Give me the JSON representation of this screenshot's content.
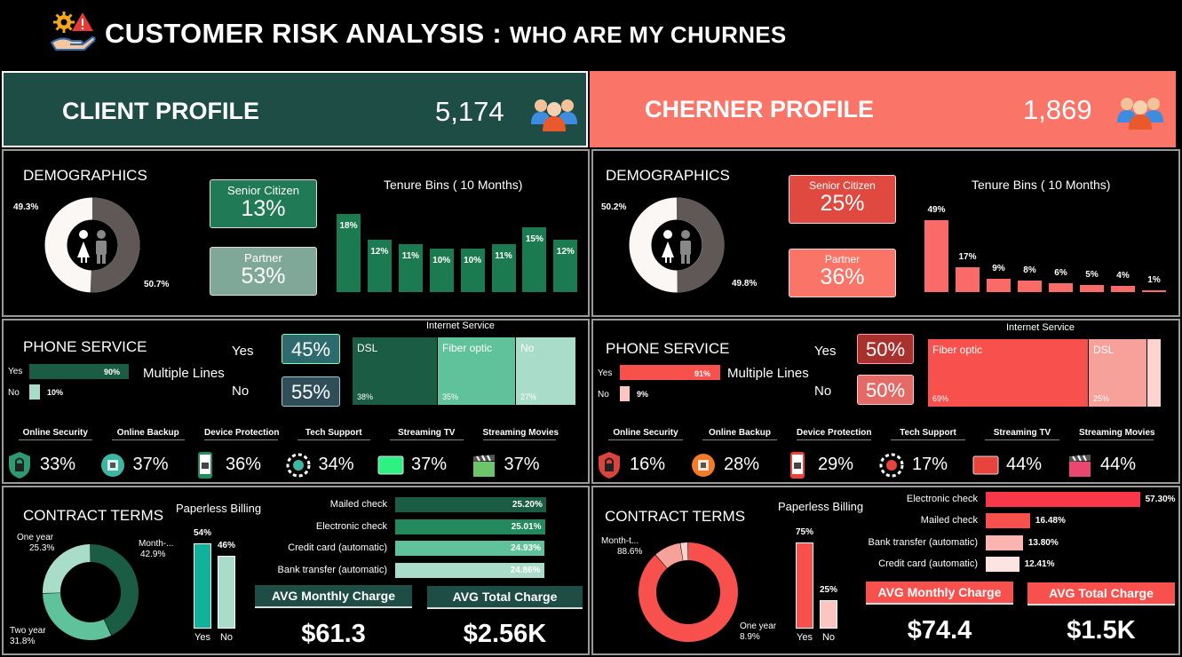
{
  "header": {
    "title": "CUSTOMER RISK ANALYSIS :",
    "subtitle": "WHO ARE MY CHURNES",
    "icon": "hand-gear-alert-icon"
  },
  "client": {
    "label": "CLIENT PROFILE",
    "count": "5,174",
    "colors": {
      "banner": "#1e4d45",
      "accent": "#1c7a50"
    },
    "demographics": {
      "title": "DEMOGRAPHICS",
      "gender_pct": [
        "49.3%",
        "50.7%"
      ],
      "gender_values": [
        49.3,
        50.7
      ],
      "senior": {
        "label": "Senior Citizen",
        "value": "13%"
      },
      "partner": {
        "label": "Partner",
        "value": "53%"
      },
      "tenure_title": "Tenure Bins ( 10 Months)",
      "tenure_labels": [
        "18%",
        "12%",
        "11%",
        "10%",
        "10%",
        "11%",
        "15%",
        "12%"
      ],
      "tenure_values": [
        18,
        12,
        11,
        10,
        10,
        11,
        15,
        12
      ]
    },
    "phone": {
      "title": "PHONE SERVICE",
      "multi_label": "Multiple Lines",
      "rows": [
        {
          "label": "Yes",
          "pct": "90%",
          "value": 90
        },
        {
          "label": "No",
          "pct": "10%",
          "value": 10
        }
      ],
      "yes_label": "Yes",
      "yes_pct": "45%",
      "no_label": "No",
      "no_pct": "55%"
    },
    "internet": {
      "title": "Internet Service",
      "tiles": [
        {
          "label": "DSL",
          "pct": "38%",
          "value": 38,
          "color": "#1b5c45"
        },
        {
          "label": "Fiber optic",
          "pct": "35%",
          "value": 35,
          "color": "#5fc29a"
        },
        {
          "label": "No",
          "pct": "27%",
          "value": 27,
          "color": "#a9dcc9"
        }
      ]
    },
    "services": [
      {
        "label": "Online Security",
        "pct": "33%",
        "icon": "shield-lock-icon"
      },
      {
        "label": "Online Backup",
        "pct": "37%",
        "icon": "backup-icon"
      },
      {
        "label": "Device Protection",
        "pct": "36%",
        "icon": "phone-lock-icon"
      },
      {
        "label": "Tech Support",
        "pct": "34%",
        "icon": "support-gear-icon"
      },
      {
        "label": "Streaming TV",
        "pct": "37%",
        "icon": "tv-icon"
      },
      {
        "label": "Streaming Movies",
        "pct": "37%",
        "icon": "clapper-icon"
      }
    ],
    "contract": {
      "title": "CONTRACT TERMS",
      "slices": [
        {
          "label": "Month-...",
          "pct": "42.9%",
          "value": 42.9,
          "color": "#1b5c45"
        },
        {
          "label": "Two year",
          "pct": "31.8%",
          "value": 31.8,
          "color": "#5fc29a"
        },
        {
          "label": "One year",
          "pct": "25.3%",
          "value": 25.3,
          "color": "#a9dcc9"
        }
      ]
    },
    "paperless": {
      "title": "Paperless Billing",
      "bars": [
        {
          "label": "Yes",
          "pct": "54%",
          "value": 54,
          "color": "#10b39a"
        },
        {
          "label": "No",
          "pct": "46%",
          "value": 46,
          "color": "#a9dcc9"
        }
      ]
    },
    "payment": [
      {
        "label": "Mailed check",
        "pct": "25.20%",
        "value": 25.2,
        "color": "#1b5c45"
      },
      {
        "label": "Electronic check",
        "pct": "25.01%",
        "value": 25.01,
        "color": "#228a5c"
      },
      {
        "label": "Credit card (automatic)",
        "pct": "24.93%",
        "value": 24.93,
        "color": "#5fc29a"
      },
      {
        "label": "Bank transfer (automatic)",
        "pct": "24.86%",
        "value": 24.86,
        "color": "#a9dcc9"
      }
    ],
    "avg_monthly": {
      "label": "AVG Monthly Charge",
      "value": "$61.3"
    },
    "avg_total": {
      "label": "AVG Total Charge",
      "value": "$2.56K"
    }
  },
  "churner": {
    "label": "CHERNER PROFILE",
    "count": "1,869",
    "colors": {
      "banner": "#fa7468",
      "accent": "#f86b66"
    },
    "demographics": {
      "title": "DEMOGRAPHICS",
      "gender_pct": [
        "50.2%",
        "49.8%"
      ],
      "gender_values": [
        50.2,
        49.8
      ],
      "senior": {
        "label": "Senior Citizen",
        "value": "25%"
      },
      "partner": {
        "label": "Partner",
        "value": "36%"
      },
      "tenure_title": "Tenure Bins ( 10 Months)",
      "tenure_labels": [
        "49%",
        "17%",
        "9%",
        "8%",
        "6%",
        "5%",
        "4%",
        "1%"
      ],
      "tenure_values": [
        49,
        17,
        9,
        8,
        6,
        5,
        4,
        1
      ]
    },
    "phone": {
      "title": "PHONE SERVICE",
      "multi_label": "Multiple Lines",
      "rows": [
        {
          "label": "Yes",
          "pct": "91%",
          "value": 91
        },
        {
          "label": "No",
          "pct": "9%",
          "value": 9
        }
      ],
      "yes_label": "Yes",
      "yes_pct": "50%",
      "no_label": "No",
      "no_pct": "50%"
    },
    "internet": {
      "title": "Internet Service",
      "tiles": [
        {
          "label": "Fiber optic",
          "pct": "69%",
          "value": 69,
          "color": "#f8504c"
        },
        {
          "label": "DSL",
          "pct": "25%",
          "value": 25,
          "color": "#f6a19a"
        },
        {
          "label": "",
          "pct": "",
          "value": 6,
          "color": "#fbd3cf"
        }
      ]
    },
    "services": [
      {
        "label": "Online Security",
        "pct": "16%",
        "icon": "shield-lock-icon"
      },
      {
        "label": "Online Backup",
        "pct": "28%",
        "icon": "backup-icon"
      },
      {
        "label": "Device Protection",
        "pct": "29%",
        "icon": "phone-lock-icon"
      },
      {
        "label": "Tech Support",
        "pct": "17%",
        "icon": "support-gear-icon"
      },
      {
        "label": "Streaming TV",
        "pct": "44%",
        "icon": "tv-icon"
      },
      {
        "label": "Streaming Movies",
        "pct": "44%",
        "icon": "clapper-icon"
      }
    ],
    "contract": {
      "title": "CONTRACT TERMS",
      "slices": [
        {
          "label": "Month-t...",
          "pct": "88.6%",
          "value": 88.6,
          "color": "#f8504c"
        },
        {
          "label": "One year",
          "pct": "8.9%",
          "value": 8.9,
          "color": "#f6a19a"
        },
        {
          "label": "",
          "pct": "",
          "value": 2.5,
          "color": "#fbd3cf"
        }
      ]
    },
    "paperless": {
      "title": "Paperless Billing",
      "bars": [
        {
          "label": "Yes",
          "pct": "75%",
          "value": 75,
          "color": "#f8504c"
        },
        {
          "label": "No",
          "pct": "25%",
          "value": 25,
          "color": "#fbc6c1"
        }
      ]
    },
    "payment": [
      {
        "label": "Electronic check",
        "pct": "57.30%",
        "value": 57.3,
        "color": "#f8384a"
      },
      {
        "label": "Mailed check",
        "pct": "16.48%",
        "value": 16.48,
        "color": "#f8504c"
      },
      {
        "label": "Bank transfer (automatic)",
        "pct": "13.80%",
        "value": 13.8,
        "color": "#fbb4b0"
      },
      {
        "label": "Credit card (automatic)",
        "pct": "12.41%",
        "value": 12.41,
        "color": "#fde3e1"
      }
    ],
    "avg_monthly": {
      "label": "AVG Monthly Charge",
      "value": "$74.4"
    },
    "avg_total": {
      "label": "AVG Total Charge",
      "value": "$1.5K"
    }
  }
}
